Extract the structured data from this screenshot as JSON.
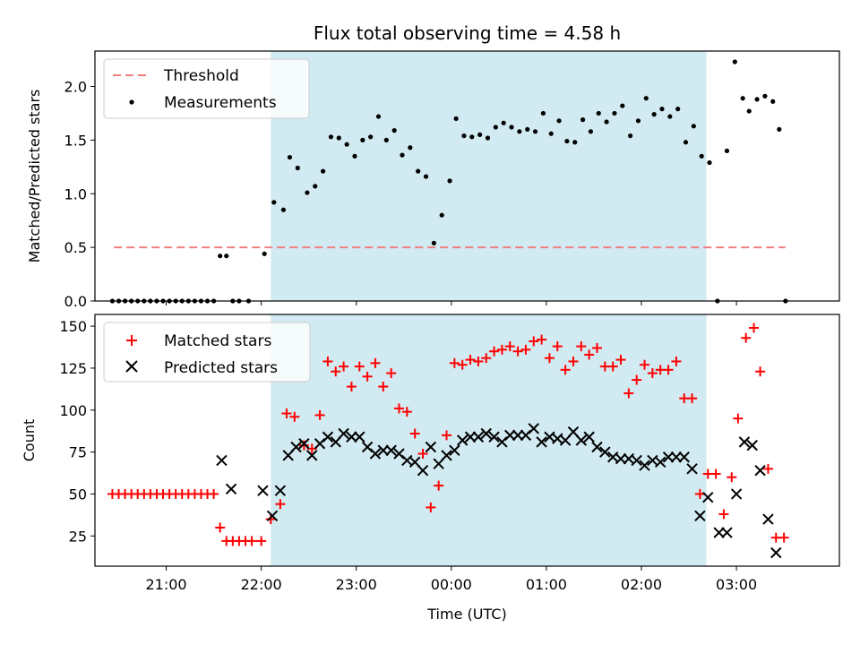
{
  "chart_data": [
    {
      "type": "scatter",
      "title": "Flux total observing time = 4.58 h",
      "xlabel": "",
      "ylabel": "Matched/Predicted stars",
      "xlim": [
        "20:15",
        "04:05"
      ],
      "ylim": [
        0,
        2.33
      ],
      "yticks": [
        "0.0",
        "0.5",
        "1.0",
        "1.5",
        "2.0"
      ],
      "shaded_span": {
        "x_start": "22:06",
        "x_end": "02:41",
        "color": "#add8e6"
      },
      "legend": {
        "placement": "upper-left",
        "entries": [
          "Threshold",
          "Measurements"
        ]
      },
      "threshold": {
        "name": "Threshold",
        "value": 0.5,
        "x_start": "20:27",
        "x_end": "03:31",
        "color": "#f08080"
      },
      "series": [
        {
          "name": "Measurements",
          "color": "#000000",
          "points": [
            [
              "20:26",
              0.0
            ],
            [
              "20:30",
              0.0
            ],
            [
              "20:34",
              0.0
            ],
            [
              "20:38",
              0.0
            ],
            [
              "20:42",
              0.0
            ],
            [
              "20:46",
              0.0
            ],
            [
              "20:50",
              0.0
            ],
            [
              "20:54",
              0.0
            ],
            [
              "20:58",
              0.0
            ],
            [
              "21:02",
              0.0
            ],
            [
              "21:06",
              0.0
            ],
            [
              "21:10",
              0.0
            ],
            [
              "21:14",
              0.0
            ],
            [
              "21:18",
              0.0
            ],
            [
              "21:22",
              0.0
            ],
            [
              "21:26",
              0.0
            ],
            [
              "21:30",
              0.0
            ],
            [
              "21:34",
              0.42
            ],
            [
              "21:38",
              0.42
            ],
            [
              "21:42",
              0.0
            ],
            [
              "21:46",
              0.0
            ],
            [
              "21:52",
              0.0
            ],
            [
              "22:02",
              0.44
            ],
            [
              "22:08",
              0.92
            ],
            [
              "22:14",
              0.85
            ],
            [
              "22:18",
              1.34
            ],
            [
              "22:23",
              1.24
            ],
            [
              "22:29",
              1.01
            ],
            [
              "22:34",
              1.07
            ],
            [
              "22:39",
              1.21
            ],
            [
              "22:44",
              1.53
            ],
            [
              "22:49",
              1.52
            ],
            [
              "22:54",
              1.46
            ],
            [
              "22:59",
              1.35
            ],
            [
              "23:04",
              1.5
            ],
            [
              "23:09",
              1.53
            ],
            [
              "23:14",
              1.72
            ],
            [
              "23:19",
              1.5
            ],
            [
              "23:24",
              1.59
            ],
            [
              "23:29",
              1.36
            ],
            [
              "23:34",
              1.43
            ],
            [
              "23:39",
              1.21
            ],
            [
              "23:44",
              1.16
            ],
            [
              "23:49",
              0.54
            ],
            [
              "23:54",
              0.8
            ],
            [
              "23:59",
              1.12
            ],
            [
              "00:03",
              1.7
            ],
            [
              "00:08",
              1.54
            ],
            [
              "00:13",
              1.53
            ],
            [
              "00:18",
              1.55
            ],
            [
              "00:23",
              1.52
            ],
            [
              "00:28",
              1.62
            ],
            [
              "00:33",
              1.66
            ],
            [
              "00:38",
              1.62
            ],
            [
              "00:43",
              1.58
            ],
            [
              "00:48",
              1.6
            ],
            [
              "00:53",
              1.58
            ],
            [
              "00:58",
              1.75
            ],
            [
              "01:03",
              1.56
            ],
            [
              "01:08",
              1.68
            ],
            [
              "01:13",
              1.49
            ],
            [
              "01:18",
              1.48
            ],
            [
              "01:23",
              1.69
            ],
            [
              "01:28",
              1.58
            ],
            [
              "01:33",
              1.75
            ],
            [
              "01:38",
              1.67
            ],
            [
              "01:43",
              1.75
            ],
            [
              "01:48",
              1.82
            ],
            [
              "01:53",
              1.54
            ],
            [
              "01:58",
              1.68
            ],
            [
              "02:03",
              1.89
            ],
            [
              "02:08",
              1.74
            ],
            [
              "02:13",
              1.79
            ],
            [
              "02:18",
              1.72
            ],
            [
              "02:23",
              1.79
            ],
            [
              "02:28",
              1.48
            ],
            [
              "02:33",
              1.63
            ],
            [
              "02:38",
              1.35
            ],
            [
              "02:43",
              1.29
            ],
            [
              "02:48",
              0.0
            ],
            [
              "02:54",
              1.4
            ],
            [
              "02:59",
              2.23
            ],
            [
              "03:04",
              1.89
            ],
            [
              "03:08",
              1.77
            ],
            [
              "03:13",
              1.88
            ],
            [
              "03:18",
              1.91
            ],
            [
              "03:23",
              1.86
            ],
            [
              "03:27",
              1.6
            ],
            [
              "03:31",
              0.0
            ]
          ]
        }
      ]
    },
    {
      "type": "scatter",
      "title": "",
      "xlabel": "Time (UTC)",
      "ylabel": "Count",
      "xlim": [
        "20:15",
        "04:05"
      ],
      "ylim": [
        7,
        157
      ],
      "yticks": [
        "25",
        "50",
        "75",
        "100",
        "125",
        "150"
      ],
      "xticks": [
        "21:00",
        "22:00",
        "23:00",
        "00:00",
        "01:00",
        "02:00",
        "03:00"
      ],
      "shaded_span": {
        "x_start": "22:06",
        "x_end": "02:41",
        "color": "#add8e6"
      },
      "legend": {
        "placement": "upper-left",
        "entries": [
          "Matched stars",
          "Predicted stars"
        ]
      },
      "series": [
        {
          "name": "Matched stars",
          "marker": "plus",
          "color": "#ff0000",
          "points": [
            [
              "20:26",
              50
            ],
            [
              "20:30",
              50
            ],
            [
              "20:34",
              50
            ],
            [
              "20:38",
              50
            ],
            [
              "20:42",
              50
            ],
            [
              "20:46",
              50
            ],
            [
              "20:50",
              50
            ],
            [
              "20:54",
              50
            ],
            [
              "20:58",
              50
            ],
            [
              "21:02",
              50
            ],
            [
              "21:06",
              50
            ],
            [
              "21:10",
              50
            ],
            [
              "21:14",
              50
            ],
            [
              "21:18",
              50
            ],
            [
              "21:22",
              50
            ],
            [
              "21:26",
              50
            ],
            [
              "21:30",
              50
            ],
            [
              "21:34",
              30
            ],
            [
              "21:38",
              22
            ],
            [
              "21:42",
              22
            ],
            [
              "21:46",
              22
            ],
            [
              "21:50",
              22
            ],
            [
              "21:54",
              22
            ],
            [
              "22:00",
              22
            ],
            [
              "22:06",
              35
            ],
            [
              "22:12",
              44
            ],
            [
              "22:16",
              98
            ],
            [
              "22:21",
              96
            ],
            [
              "22:27",
              79
            ],
            [
              "22:32",
              77
            ],
            [
              "22:37",
              97
            ],
            [
              "22:42",
              129
            ],
            [
              "22:47",
              123
            ],
            [
              "22:52",
              126
            ],
            [
              "22:57",
              114
            ],
            [
              "23:02",
              126
            ],
            [
              "23:07",
              120
            ],
            [
              "23:12",
              128
            ],
            [
              "23:17",
              114
            ],
            [
              "23:22",
              122
            ],
            [
              "23:27",
              101
            ],
            [
              "23:32",
              99
            ],
            [
              "23:37",
              86
            ],
            [
              "23:42",
              74
            ],
            [
              "23:47",
              42
            ],
            [
              "23:52",
              55
            ],
            [
              "23:57",
              85
            ],
            [
              "00:02",
              128
            ],
            [
              "00:07",
              127
            ],
            [
              "00:12",
              130
            ],
            [
              "00:17",
              129
            ],
            [
              "00:22",
              131
            ],
            [
              "00:27",
              135
            ],
            [
              "00:32",
              136
            ],
            [
              "00:37",
              138
            ],
            [
              "00:42",
              135
            ],
            [
              "00:47",
              136
            ],
            [
              "00:52",
              141
            ],
            [
              "00:57",
              142
            ],
            [
              "01:02",
              131
            ],
            [
              "01:07",
              138
            ],
            [
              "01:12",
              124
            ],
            [
              "01:17",
              129
            ],
            [
              "01:22",
              138
            ],
            [
              "01:27",
              133
            ],
            [
              "01:32",
              137
            ],
            [
              "01:37",
              126
            ],
            [
              "01:42",
              126
            ],
            [
              "01:47",
              130
            ],
            [
              "01:52",
              110
            ],
            [
              "01:57",
              118
            ],
            [
              "02:02",
              127
            ],
            [
              "02:07",
              122
            ],
            [
              "02:12",
              124
            ],
            [
              "02:17",
              124
            ],
            [
              "02:22",
              129
            ],
            [
              "02:27",
              107
            ],
            [
              "02:32",
              107
            ],
            [
              "02:37",
              50
            ],
            [
              "02:42",
              62
            ],
            [
              "02:47",
              62
            ],
            [
              "02:52",
              38
            ],
            [
              "02:57",
              60
            ],
            [
              "03:01",
              95
            ],
            [
              "03:06",
              143
            ],
            [
              "03:11",
              149
            ],
            [
              "03:15",
              123
            ],
            [
              "03:20",
              65
            ],
            [
              "03:25",
              24
            ],
            [
              "03:30",
              24
            ]
          ]
        },
        {
          "name": "Predicted stars",
          "marker": "x",
          "color": "#000000",
          "points": [
            [
              "21:35",
              70
            ],
            [
              "21:41",
              53
            ],
            [
              "22:01",
              52
            ],
            [
              "22:07",
              37
            ],
            [
              "22:12",
              52
            ],
            [
              "22:17",
              73
            ],
            [
              "22:22",
              78
            ],
            [
              "22:27",
              80
            ],
            [
              "22:32",
              73
            ],
            [
              "22:37",
              80
            ],
            [
              "22:42",
              84
            ],
            [
              "22:47",
              81
            ],
            [
              "22:52",
              86
            ],
            [
              "22:57",
              84
            ],
            [
              "23:02",
              84
            ],
            [
              "23:07",
              78
            ],
            [
              "23:12",
              74
            ],
            [
              "23:17",
              76
            ],
            [
              "23:22",
              76
            ],
            [
              "23:27",
              74
            ],
            [
              "23:32",
              70
            ],
            [
              "23:37",
              69
            ],
            [
              "23:42",
              64
            ],
            [
              "23:47",
              78
            ],
            [
              "23:52",
              68
            ],
            [
              "23:57",
              73
            ],
            [
              "00:02",
              76
            ],
            [
              "00:07",
              82
            ],
            [
              "00:12",
              84
            ],
            [
              "00:17",
              84
            ],
            [
              "00:22",
              86
            ],
            [
              "00:27",
              84
            ],
            [
              "00:32",
              81
            ],
            [
              "00:37",
              85
            ],
            [
              "00:42",
              85
            ],
            [
              "00:47",
              85
            ],
            [
              "00:52",
              89
            ],
            [
              "00:57",
              81
            ],
            [
              "01:02",
              84
            ],
            [
              "01:07",
              83
            ],
            [
              "01:12",
              82
            ],
            [
              "01:17",
              87
            ],
            [
              "01:22",
              82
            ],
            [
              "01:27",
              84
            ],
            [
              "01:32",
              78
            ],
            [
              "01:37",
              75
            ],
            [
              "01:42",
              72
            ],
            [
              "01:47",
              71
            ],
            [
              "01:52",
              71
            ],
            [
              "01:57",
              70
            ],
            [
              "02:02",
              67
            ],
            [
              "02:07",
              70
            ],
            [
              "02:12",
              69
            ],
            [
              "02:17",
              72
            ],
            [
              "02:22",
              72
            ],
            [
              "02:27",
              72
            ],
            [
              "02:32",
              65
            ],
            [
              "02:37",
              37
            ],
            [
              "02:42",
              48
            ],
            [
              "02:49",
              27
            ],
            [
              "02:54",
              27
            ],
            [
              "03:00",
              50
            ],
            [
              "03:05",
              81
            ],
            [
              "03:10",
              79
            ],
            [
              "03:15",
              64
            ],
            [
              "03:20",
              35
            ],
            [
              "03:25",
              15
            ]
          ]
        }
      ]
    }
  ]
}
